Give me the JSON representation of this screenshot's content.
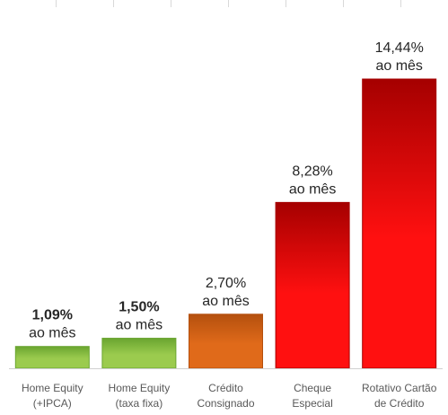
{
  "chart_data": {
    "type": "bar",
    "categories": [
      [
        "Home Equity",
        "(+IPCA)"
      ],
      [
        "Home Equity",
        "(taxa fixa)"
      ],
      [
        "Crédito",
        "Consignado"
      ],
      [
        "Cheque",
        "Especial"
      ],
      [
        "Rotativo Cartão",
        "de Crédito"
      ]
    ],
    "values": [
      1.09,
      1.5,
      2.7,
      8.28,
      14.44
    ],
    "data_labels": [
      [
        "1,09%",
        "ao mês"
      ],
      [
        "1,50%",
        "ao mês"
      ],
      [
        "2,70%",
        "ao mês"
      ],
      [
        "8,28%",
        "ao mês"
      ],
      [
        "14,44%",
        "ao mês"
      ]
    ],
    "label_bold": [
      true,
      true,
      false,
      false,
      false
    ],
    "bar_colors": [
      {
        "light": "#9bcb4e",
        "dark": "#6aa530"
      },
      {
        "light": "#9bcb4e",
        "dark": "#6aa530"
      },
      {
        "light": "#e06a1a",
        "dark": "#b4500e"
      },
      {
        "light": "#ff1010",
        "dark": "#a50000"
      },
      {
        "light": "#ff1010",
        "dark": "#a50000"
      }
    ],
    "title": "",
    "xlabel": "",
    "ylabel": "",
    "ylim": [
      0,
      14.44
    ],
    "grid": false,
    "legend": "none"
  }
}
